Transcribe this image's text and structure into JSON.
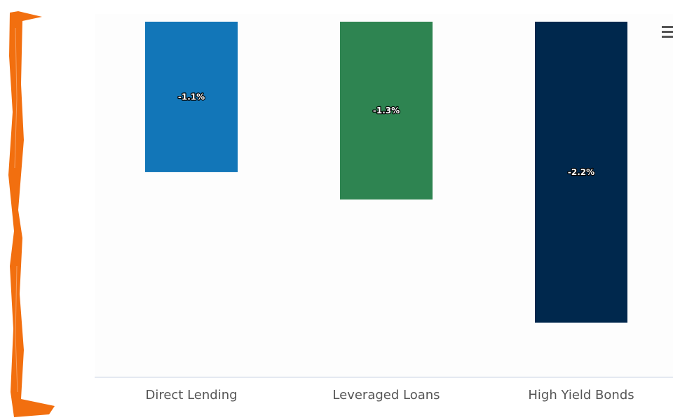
{
  "colors": {
    "accent_bracket": "#f26f0f",
    "axis_line": "#c9d3e3",
    "plot_background": "#fdfdfd"
  },
  "menu": {
    "icon": "hamburger-menu-icon"
  },
  "chart_data": {
    "type": "bar",
    "categories": [
      "Direct Lending",
      "Leveraged Loans",
      "High Yield Bonds"
    ],
    "values": [
      -1.1,
      -1.3,
      -2.2
    ],
    "data_labels": [
      "-1.1%",
      "-1.3%",
      "-2.2%"
    ],
    "colors": [
      "#1276b8",
      "#2e8451",
      "#00284d"
    ],
    "ylim": [
      -2.6,
      0
    ],
    "grid": false,
    "legend": "none"
  }
}
